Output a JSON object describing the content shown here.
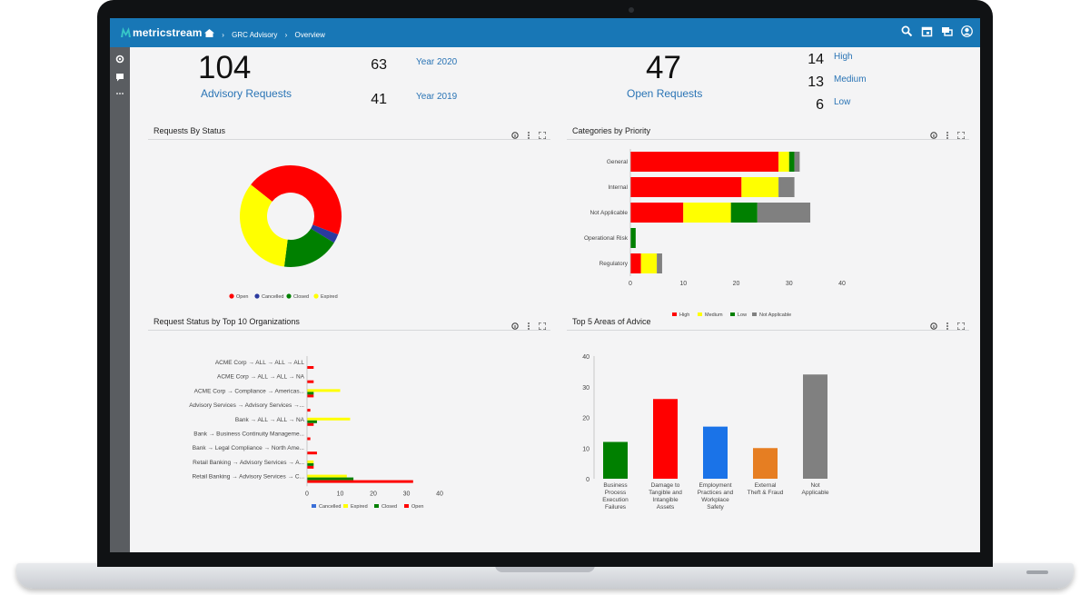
{
  "app": {
    "logo_text": "metricstream"
  },
  "breadcrumb": {
    "home_icon": "home-icon",
    "items": [
      "GRC Advisory",
      "Overview"
    ]
  },
  "top_icons": [
    "search-icon",
    "calendar-icon",
    "chat-icon",
    "user-icon"
  ],
  "kpis": {
    "advisory": {
      "value": "104",
      "label": "Advisory Requests",
      "breakdown": [
        {
          "value": "63",
          "label": "Year 2020"
        },
        {
          "value": "41",
          "label": "Year 2019"
        }
      ]
    },
    "open": {
      "value": "47",
      "label": "Open Requests",
      "breakdown": [
        {
          "value": "14",
          "label": "High"
        },
        {
          "value": "13",
          "label": "Medium"
        },
        {
          "value": "6",
          "label": "Low"
        }
      ]
    }
  },
  "panels": {
    "requests_by_status": "Requests By Status",
    "categories_by_priority": "Categories by Priority",
    "request_status_by_org": "Request Status by Top 10 Organizations",
    "top5_areas": "Top 5 Areas of Advice"
  },
  "colors": {
    "red": "#ff0000",
    "yellow": "#ffff00",
    "green": "#008000",
    "blue": "#2b3a9f",
    "gray": "#808080",
    "topbar": "#1877b6"
  },
  "chart_data": [
    {
      "type": "pie",
      "title": "Requests By Status",
      "labels": [
        "Open",
        "Cancelled",
        "Closed",
        "Expired"
      ],
      "values": [
        47,
        3,
        19,
        35
      ],
      "colors": [
        "#ff0000",
        "#2b3a9f",
        "#008000",
        "#ffff00"
      ]
    },
    {
      "type": "bar",
      "orientation": "horizontal",
      "stacked": true,
      "title": "Categories by Priority",
      "categories": [
        "General",
        "Internal",
        "Not Applicable",
        "Operational Risk",
        "Regulatory"
      ],
      "series": [
        {
          "name": "High",
          "values": [
            28,
            21,
            10,
            0,
            2
          ],
          "color": "#ff0000"
        },
        {
          "name": "Medium",
          "values": [
            2,
            7,
            9,
            0,
            3
          ],
          "color": "#ffff00"
        },
        {
          "name": "Low",
          "values": [
            1,
            0,
            5,
            1,
            0
          ],
          "color": "#008000"
        },
        {
          "name": "Not Applicable",
          "values": [
            1,
            3,
            10,
            0,
            1
          ],
          "color": "#808080"
        }
      ],
      "xticks": [
        0,
        10,
        20,
        30,
        40
      ],
      "xlim": [
        0,
        40
      ]
    },
    {
      "type": "bar",
      "orientation": "horizontal",
      "grouped": true,
      "title": "Request Status by Top 10 Organizations",
      "categories": [
        "ACME Corp → ALL → ALL → ALL",
        "ACME Corp → ALL → ALL → NA",
        "ACME Corp → Compliance → Americas...",
        "Advisory Services → Advisory Services →...",
        "Bank → ALL → ALL → NA",
        "Bank → Business Continuity Manageme...",
        "Bank → Legal Compliance → North Ame...",
        "Retail Banking → Advisory Services → A...",
        "Retail Banking → Advisory Services → C..."
      ],
      "series": [
        {
          "name": "Cancelled",
          "values": [
            0,
            0,
            0,
            0,
            0,
            0,
            0,
            0,
            0
          ],
          "color": "#3a6fd8"
        },
        {
          "name": "Expired",
          "values": [
            0,
            0,
            10,
            0,
            13,
            0,
            0,
            2,
            12
          ],
          "color": "#ffff00"
        },
        {
          "name": "Closed",
          "values": [
            0,
            0,
            2,
            0,
            3,
            0,
            0,
            2,
            14
          ],
          "color": "#008000"
        },
        {
          "name": "Open",
          "values": [
            2,
            2,
            2,
            1,
            2,
            1,
            3,
            2,
            32
          ],
          "color": "#ff0000"
        }
      ],
      "xticks": [
        0,
        10,
        20,
        30,
        40
      ],
      "xlim": [
        0,
        40
      ]
    },
    {
      "type": "bar",
      "title": "Top 5 Areas of Advice",
      "categories": [
        "Business Process Execution Failures",
        "Damage to Tangible and Intangible Assets",
        "Employment Practices and Workplace Safety",
        "External Theft & Fraud",
        "Not Applicable"
      ],
      "values": [
        12,
        26,
        17,
        10,
        34
      ],
      "colors": [
        "#008000",
        "#ff0000",
        "#1a73e8",
        "#e67e22",
        "#808080"
      ],
      "yticks": [
        0,
        10,
        20,
        30,
        40
      ],
      "ylim": [
        0,
        40
      ]
    }
  ]
}
